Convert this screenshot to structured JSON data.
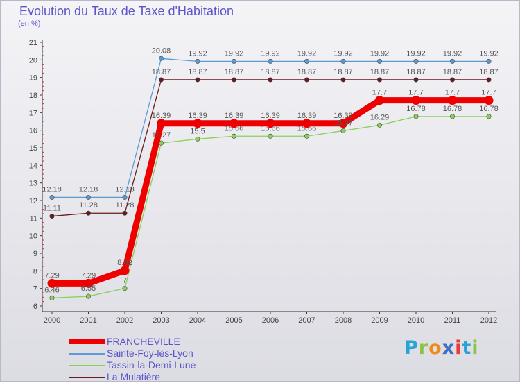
{
  "chart_data": {
    "type": "line",
    "title": "Evolution du Taux de Taxe d'Habitation",
    "subtitle": "(en %)",
    "xlabel": "",
    "ylabel": "(en %)",
    "ylim": [
      6,
      21
    ],
    "y_ticks": [
      6,
      7,
      8,
      9,
      10,
      11,
      12,
      13,
      14,
      15,
      16,
      17,
      18,
      19,
      20,
      21
    ],
    "x": [
      "2000",
      "2001",
      "2002",
      "2003",
      "2004",
      "2005",
      "2006",
      "2007",
      "2008",
      "2009",
      "2010",
      "2011",
      "2012"
    ],
    "grid": false,
    "legend_position": "bottom-left",
    "series": [
      {
        "name": "FRANCHEVILLE",
        "color": "#ee0000",
        "values": [
          7.29,
          7.29,
          8.02,
          16.39,
          16.39,
          16.39,
          16.39,
          16.39,
          16.39,
          17.7,
          17.7,
          17.7,
          17.7
        ],
        "labels": [
          "7.29",
          "7.29",
          "8.02",
          "16.39",
          "16.39",
          "16.39",
          "16.39",
          "16.39",
          "16.39",
          "17.7",
          "17.7",
          "17.7",
          "17.7"
        ]
      },
      {
        "name": "Sainte-Foy-lès-Lyon",
        "color": "#5b9bd5",
        "values": [
          12.18,
          12.18,
          12.18,
          20.08,
          19.92,
          19.92,
          19.92,
          19.92,
          19.92,
          19.92,
          19.92,
          19.92,
          19.92
        ],
        "labels": [
          "12.18",
          "12.18",
          "12.18",
          "20.08",
          "19.92",
          "19.92",
          "19.92",
          "19.92",
          "19.92",
          "19.92",
          "19.92",
          "19.92",
          "19.92"
        ]
      },
      {
        "name": "Tassin-la-Demi-Lune",
        "color": "#8ad05a",
        "values": [
          6.46,
          6.55,
          7.0,
          15.27,
          15.5,
          15.66,
          15.66,
          15.66,
          15.97,
          16.29,
          16.78,
          16.78,
          16.78
        ],
        "labels": [
          "6.46",
          "6.55",
          "7",
          "15.27",
          "15.5",
          "15.66",
          "15.66",
          "15.66",
          "15.97",
          "16.29",
          "16.78",
          "16.78",
          "16.78"
        ]
      },
      {
        "name": "La Mulatière",
        "color": "#6b1a1a",
        "values": [
          11.11,
          11.28,
          11.28,
          18.87,
          18.87,
          18.87,
          18.87,
          18.87,
          18.87,
          18.87,
          18.87,
          18.87,
          18.87
        ],
        "labels": [
          "11.11",
          "11.28",
          "11.28",
          "18.87",
          "18.87",
          "18.87",
          "18.87",
          "18.87",
          "18.87",
          "18.87",
          "18.87",
          "18.87",
          "18.87"
        ]
      }
    ]
  },
  "logo": {
    "letters": [
      "P",
      "r",
      "o",
      "x",
      "i",
      "t",
      "i"
    ],
    "colors": [
      "#29a3d6",
      "#8bc34a",
      "#f08a1c",
      "#3f6fc4",
      "#e83c3c",
      "#29a3d6",
      "#8bc34a"
    ]
  }
}
